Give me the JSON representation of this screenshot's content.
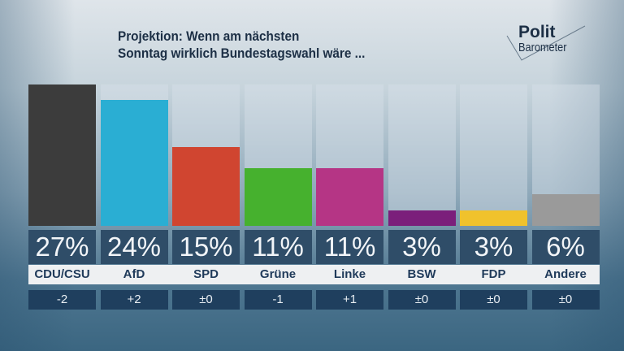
{
  "header": {
    "line1": "Projektion: Wenn am nächsten",
    "line2": "Sonntag wirklich Bundestagswahl wäre ..."
  },
  "logo": {
    "line1": "Polit",
    "line2": "Barometer"
  },
  "chart_data": {
    "type": "bar",
    "title": "Projektion: Wenn am nächsten Sonntag wirklich Bundestagswahl wäre ...",
    "categories": [
      "CDU/CSU",
      "AfD",
      "SPD",
      "Grüne",
      "Linke",
      "BSW",
      "FDP",
      "Andere"
    ],
    "values": [
      27,
      24,
      15,
      11,
      11,
      3,
      3,
      6
    ],
    "value_labels": [
      "27%",
      "24%",
      "15%",
      "11%",
      "11%",
      "3%",
      "3%",
      "6%"
    ],
    "changes": [
      "-2",
      "+2",
      "±0",
      "-1",
      "+1",
      "±0",
      "±0",
      "±0"
    ],
    "colors": [
      "#3c3c3c",
      "#2aaed3",
      "#d04530",
      "#46b12e",
      "#b53585",
      "#7b1f7b",
      "#f0c22c",
      "#9a9a9a"
    ],
    "ylim": [
      0,
      27
    ],
    "grid": false
  }
}
